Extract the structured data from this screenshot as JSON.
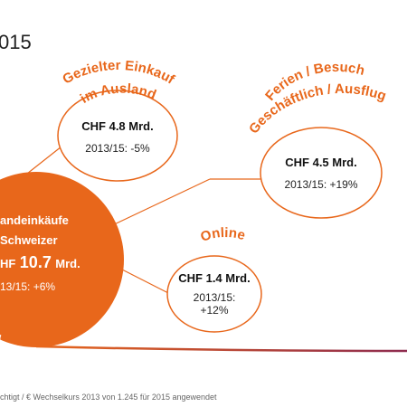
{
  "header": {
    "year_fragment": "015"
  },
  "main_bubble": {
    "line1": "andeinkäufe",
    "line2": "Schweizer",
    "line3_prefix": "HF",
    "line3_value": "10.7",
    "line3_unit": "Mrd.",
    "change": "13/15: +6%"
  },
  "bubbles": {
    "targeted": {
      "title_line1": "Gezielter Einkauf",
      "title_line2": "im Ausland",
      "amount": "CHF 4.8 Mrd.",
      "change": "2013/15: -5%"
    },
    "holiday": {
      "title_line1": "Ferien / Besuch",
      "title_line2": "Geschäftlich / Ausflug",
      "amount": "CHF 4.5 Mrd.",
      "change": "2013/15: +19%"
    },
    "online": {
      "title": "Online",
      "amount": "CHF 1.4 Mrd.",
      "change_line1": "2013/15:",
      "change_line2": "+12%"
    }
  },
  "footnote": "chtigt / € Wechselkurs 2013 von 1.245 für 2015 angewendet",
  "colors": {
    "orange": "#E8671B",
    "bubble_stroke": "#E8671B",
    "connector": "#E8671B",
    "baseline_start": "#E8671B",
    "baseline_end": "#8E2B4F"
  }
}
